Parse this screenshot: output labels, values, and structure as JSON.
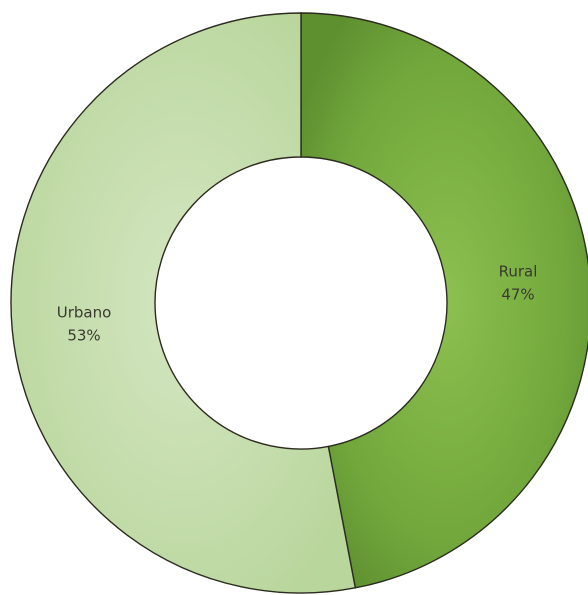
{
  "chart_data": {
    "type": "pie",
    "donut": true,
    "title": "",
    "start_angle": "top, clockwise",
    "slices": [
      {
        "label": "Rural",
        "percent_label": "47%",
        "value": 47,
        "color": "#7fb24a"
      },
      {
        "label": "Urbano",
        "percent_label": "53%",
        "value": 53,
        "color": "#c6ddb0"
      }
    ],
    "legend": "none"
  }
}
